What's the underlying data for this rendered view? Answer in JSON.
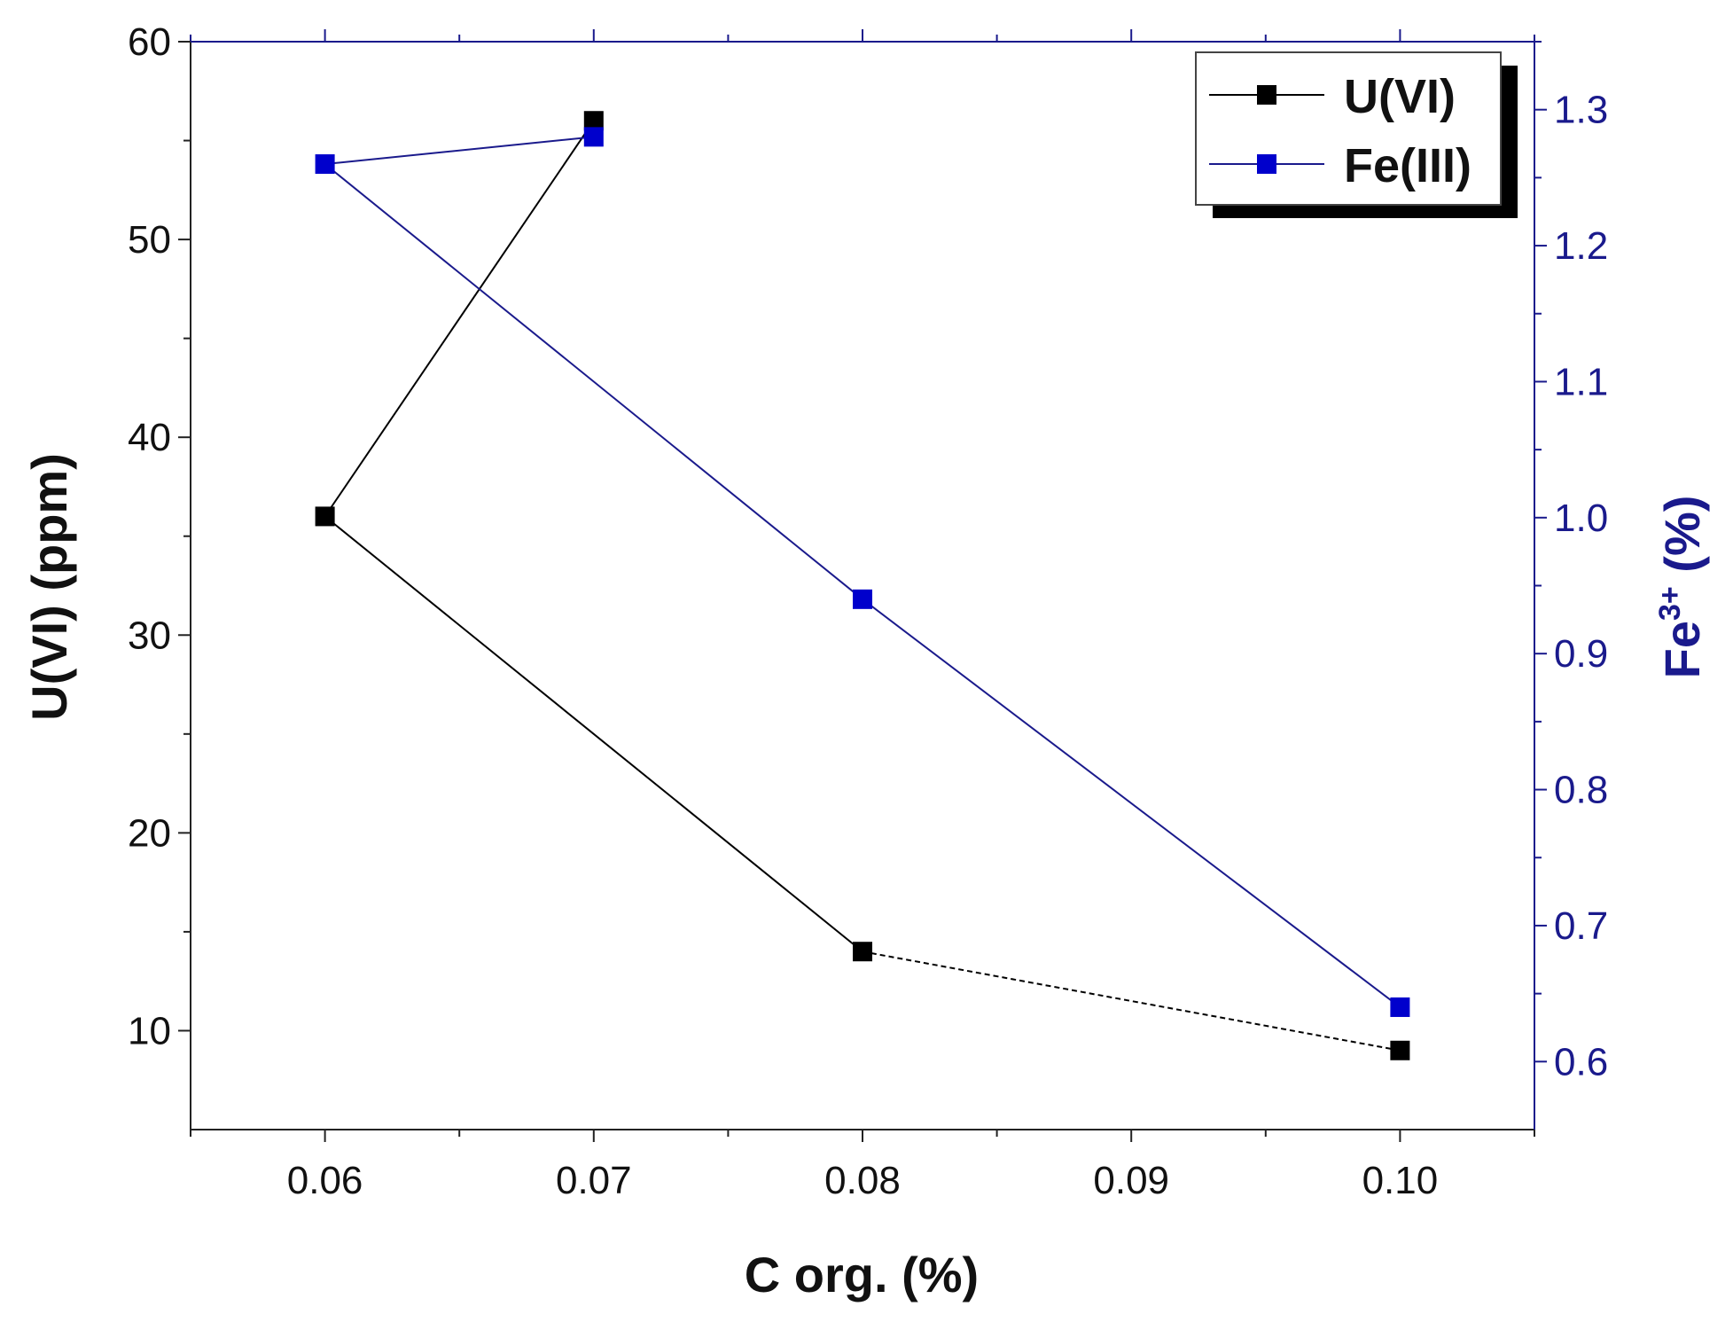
{
  "chart_data": {
    "type": "line",
    "title": "",
    "xlabel": "C org. (%)",
    "ylabel": "U(VI) (ppm)",
    "y2label": {
      "main": "Fe",
      "sup": "3+",
      "unit": " (%)"
    },
    "xlim": [
      0.055,
      0.105
    ],
    "ylim": [
      5,
      60
    ],
    "y2lim": [
      0.55,
      1.35
    ],
    "x_ticks": [
      0.06,
      0.07,
      0.08,
      0.09,
      0.1
    ],
    "x_tick_labels": [
      "0.06",
      "0.07",
      "0.08",
      "0.09",
      "0.10"
    ],
    "y_ticks": [
      10,
      20,
      30,
      40,
      50,
      60
    ],
    "y_tick_labels": [
      "10",
      "20",
      "30",
      "40",
      "50",
      "60"
    ],
    "y2_ticks": [
      0.6,
      0.7,
      0.8,
      0.9,
      1.0,
      1.1,
      1.2,
      1.3
    ],
    "y2_tick_labels": [
      "0.6",
      "0.7",
      "0.8",
      "0.9",
      "1.0",
      "1.1",
      "1.2",
      "1.3"
    ],
    "grid": false,
    "legend_position": "top-right",
    "series": [
      {
        "name": "U(VI)",
        "axis": "left",
        "color": "#000000",
        "x": [
          0.07,
          0.06,
          0.08,
          0.1
        ],
        "y": [
          56,
          36,
          14,
          9
        ]
      },
      {
        "name": "Fe(III)",
        "axis": "right",
        "color": "#0000cc",
        "line_color": "#1a1a8c",
        "x": [
          0.07,
          0.06,
          0.08,
          0.1
        ],
        "y": [
          1.28,
          1.26,
          0.94,
          0.64
        ]
      }
    ]
  }
}
